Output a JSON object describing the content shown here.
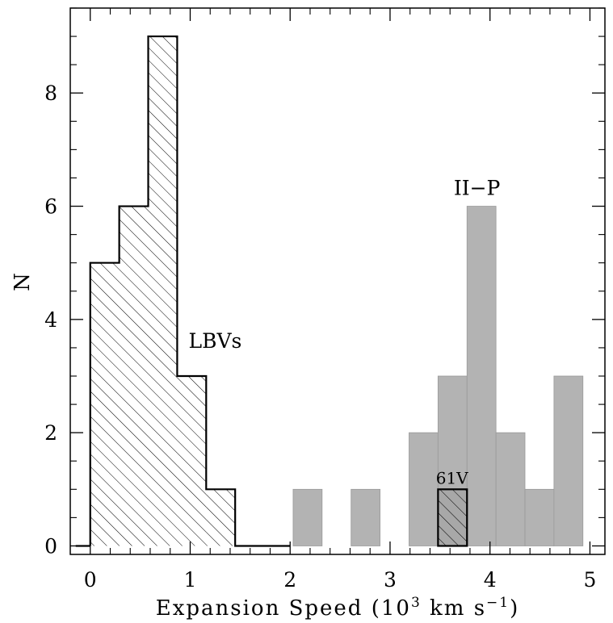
{
  "chart_data": {
    "type": "bar",
    "xlabel": "Expansion Speed (10",
    "xlabel_exp": "3",
    "xlabel_unit": " km s",
    "xlabel_unit_exp": "−1",
    "xlabel_close": ")",
    "ylabel": "N",
    "xlim": [
      -0.2,
      5.15
    ],
    "ylim": [
      -0.15,
      9.5
    ],
    "xticks": [
      0,
      1,
      2,
      3,
      4,
      5
    ],
    "xtick_labels": [
      "0",
      "1",
      "2",
      "3",
      "4",
      "5"
    ],
    "yticks": [
      0,
      2,
      4,
      6,
      8
    ],
    "ytick_labels": [
      "0",
      "2",
      "4",
      "6",
      "8"
    ],
    "grid": false,
    "series": [
      {
        "name": "LBVs",
        "style": "hatched",
        "bin_edges": [
          0.0,
          0.29,
          0.58,
          0.87,
          1.16,
          1.45,
          2.0
        ],
        "counts": [
          5,
          6,
          9,
          3,
          1,
          0
        ]
      },
      {
        "name": "II−P",
        "style": "filled",
        "bins": [
          {
            "x0": 2.03,
            "x1": 2.32,
            "count": 1
          },
          {
            "x0": 2.61,
            "x1": 2.9,
            "count": 1
          },
          {
            "x0": 3.19,
            "x1": 3.48,
            "count": 2
          },
          {
            "x0": 3.48,
            "x1": 3.77,
            "count": 3
          },
          {
            "x0": 3.77,
            "x1": 4.06,
            "count": 6
          },
          {
            "x0": 4.06,
            "x1": 4.35,
            "count": 2
          },
          {
            "x0": 4.35,
            "x1": 4.64,
            "count": 1
          },
          {
            "x0": 4.64,
            "x1": 4.93,
            "count": 3
          }
        ]
      },
      {
        "name": "61V",
        "style": "hatched-filled",
        "bins": [
          {
            "x0": 3.48,
            "x1": 3.77,
            "count": 1
          }
        ]
      }
    ],
    "annotations": [
      {
        "text": "LBVs",
        "x": 1.25,
        "y": 3.5
      },
      {
        "text": "II−P",
        "x": 3.87,
        "y": 6.2
      },
      {
        "text": "61V",
        "x": 3.62,
        "y": 1.1
      }
    ],
    "colors": {
      "filled": "#b3b3b3",
      "filled_edge": "#9a9a9a",
      "line": "#000000",
      "hatched_fill_61v": "#a8a8a8"
    }
  }
}
